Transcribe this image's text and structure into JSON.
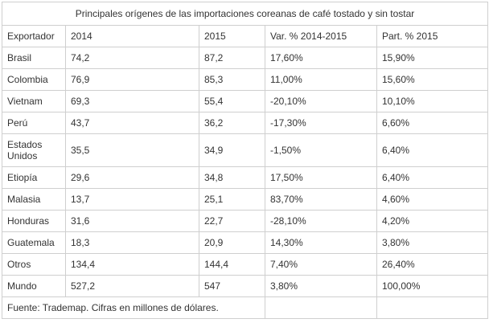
{
  "table": {
    "caption": "Principales orígenes de las importaciones coreanas de café tostado y sin tostar",
    "headers": [
      "Exportador",
      "2014",
      "2015",
      "Var. % 2014-2015",
      "Part. % 2015"
    ],
    "rows": [
      [
        "Brasil",
        "74,2",
        "87,2",
        "17,60%",
        "15,90%"
      ],
      [
        "Colombia",
        "76,9",
        "85,3",
        "11,00%",
        "15,60%"
      ],
      [
        "Vietnam",
        "69,3",
        "55,4",
        "-20,10%",
        "10,10%"
      ],
      [
        "Perú",
        "43,7",
        "36,2",
        "-17,30%",
        "6,60%"
      ],
      [
        "Estados Unidos",
        "35,5",
        "34,9",
        "-1,50%",
        "6,40%"
      ],
      [
        "Etiopía",
        "29,6",
        "34,8",
        "17,50%",
        "6,40%"
      ],
      [
        "Malasia",
        "13,7",
        "25,1",
        "83,70%",
        "4,60%"
      ],
      [
        "Honduras",
        "31,6",
        "22,7",
        "-28,10%",
        "4,20%"
      ],
      [
        "Guatemala",
        "18,3",
        "20,9",
        "14,30%",
        "3,80%"
      ],
      [
        "Otros",
        "134,4",
        "144,4",
        "7,40%",
        "26,40%"
      ],
      [
        "Mundo",
        "527,2",
        "547",
        "3,80%",
        "100,00%"
      ]
    ],
    "footnote": "Fuente: Trademap. Cifras en millones de dólares."
  }
}
